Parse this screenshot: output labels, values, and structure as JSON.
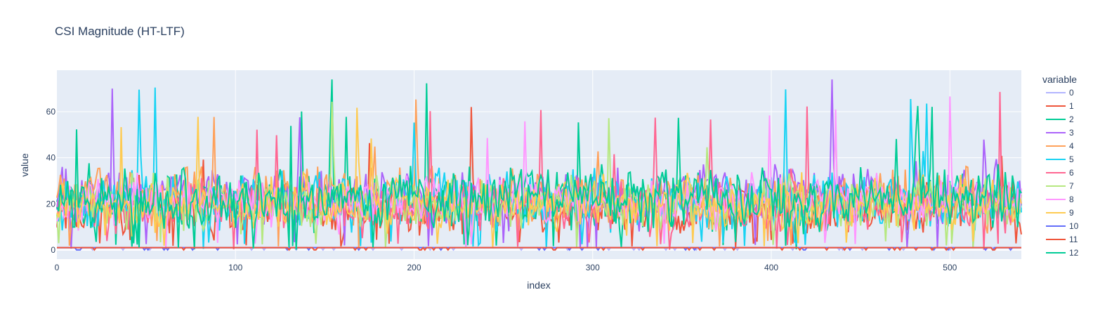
{
  "chart_data": {
    "type": "line",
    "title": "CSI Magnitude (HT-LTF)",
    "xlabel": "index",
    "ylabel": "value",
    "xlim": [
      0,
      540
    ],
    "ylim": [
      -4,
      78
    ],
    "xticks": [
      0,
      100,
      200,
      300,
      400,
      500
    ],
    "yticks": [
      0,
      20,
      40,
      60
    ],
    "grid": true,
    "legend_title": "variable",
    "legend_position": "right",
    "colors": {
      "plot_bg": "#e5ecf6",
      "grid": "#ffffff",
      "text": "#2a3f5f"
    },
    "series": [
      {
        "name": "0",
        "color": "#b3b5ff",
        "profile": "near_zero",
        "level": 1
      },
      {
        "name": "1",
        "color": "#ef553b",
        "profile": "noise",
        "mean": 17,
        "amp": 11,
        "seed": 11
      },
      {
        "name": "2",
        "color": "#00cc96",
        "profile": "noise",
        "mean": 22,
        "amp": 12,
        "seed": 22
      },
      {
        "name": "3",
        "color": "#ab63fa",
        "profile": "noise",
        "mean": 24,
        "amp": 12,
        "seed": 33
      },
      {
        "name": "4",
        "color": "#ffa15a",
        "profile": "noise",
        "mean": 23,
        "amp": 13,
        "seed": 44
      },
      {
        "name": "5",
        "color": "#19d3f3",
        "profile": "noise",
        "mean": 21,
        "amp": 12,
        "seed": 55
      },
      {
        "name": "6",
        "color": "#ff6692",
        "profile": "noise",
        "mean": 19,
        "amp": 10,
        "seed": 66
      },
      {
        "name": "7",
        "color": "#b6e880",
        "profile": "noise",
        "mean": 20,
        "amp": 11,
        "seed": 77
      },
      {
        "name": "8",
        "color": "#ff97ff",
        "profile": "noise",
        "mean": 21,
        "amp": 10,
        "seed": 88
      },
      {
        "name": "9",
        "color": "#fecb52",
        "profile": "noise",
        "mean": 20,
        "amp": 11,
        "seed": 99
      },
      {
        "name": "10",
        "color": "#636efa",
        "profile": "near_zero",
        "level": 1
      },
      {
        "name": "11",
        "color": "#ef553b",
        "profile": "near_zero",
        "level": 1
      },
      {
        "name": "12",
        "color": "#00cc96",
        "profile": "noise",
        "mean": 22,
        "amp": 12,
        "seed": 121
      }
    ]
  }
}
